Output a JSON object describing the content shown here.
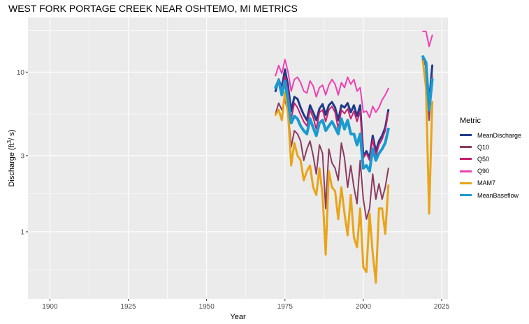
{
  "title": "WEST FORK PORTAGE CREEK NEAR OSHTEMO, MI  METRICS",
  "chart_data": {
    "type": "line",
    "title": "WEST FORK PORTAGE CREEK NEAR OSHTEMO, MI  METRICS",
    "xlabel": "Year",
    "ylabel": "Discharge (ft³/s)",
    "ylabel_parts": {
      "pre": "Discharge (ft",
      "sup": "3",
      "post": "/ s)"
    },
    "x_scale": "linear",
    "y_scale": "log10",
    "xlim": [
      1893,
      2027
    ],
    "ylim": [
      0.38,
      22
    ],
    "x_ticks": [
      1900,
      1925,
      1950,
      1975,
      2000,
      2025
    ],
    "y_ticks": [
      1,
      3,
      10
    ],
    "y_tick_labels": [
      "1",
      "3",
      "10"
    ],
    "grid": true,
    "legend_position": "right",
    "legend_title": "Metric",
    "series": [
      {
        "name": "MeanDischarge",
        "color": "#1f3a8a",
        "width": 3,
        "x": [
          1972,
          1973,
          1974,
          1975,
          1976,
          1977,
          1978,
          1979,
          1980,
          1981,
          1982,
          1983,
          1984,
          1985,
          1986,
          1987,
          1988,
          1989,
          1990,
          1991,
          1992,
          1993,
          1994,
          1995,
          1996,
          1997,
          1998,
          1999,
          2000,
          2001,
          2002,
          2003,
          2004,
          2005,
          2006,
          2007,
          2008,
          null,
          2019,
          2020,
          2021,
          2022
        ],
        "y": [
          7.6,
          9.0,
          8.0,
          10.4,
          8.2,
          5.7,
          7.0,
          6.8,
          6.0,
          5.4,
          5.0,
          6.2,
          5.6,
          5.0,
          5.9,
          6.3,
          5.4,
          6.2,
          6.5,
          6.0,
          5.0,
          6.2,
          6.0,
          6.4,
          5.6,
          6.2,
          5.3,
          6.2,
          3.0,
          3.2,
          2.9,
          4.0,
          3.2,
          3.7,
          4.0,
          4.5,
          5.8,
          null,
          12.0,
          11.0,
          6.5,
          11.0
        ]
      },
      {
        "name": "Q10",
        "color": "#8b3a62",
        "width": 2,
        "x": [
          1972,
          1973,
          1974,
          1975,
          1976,
          1977,
          1978,
          1979,
          1980,
          1981,
          1982,
          1983,
          1984,
          1985,
          1986,
          1987,
          1988,
          1989,
          1990,
          1991,
          1992,
          1993,
          1994,
          1995,
          1996,
          1997,
          1998,
          1999,
          2000,
          2001,
          2002,
          2003,
          2004,
          2005,
          2006,
          2007,
          2008,
          null,
          2019,
          2020,
          2021,
          2022
        ],
        "y": [
          5.5,
          6.4,
          5.8,
          6.7,
          5.6,
          3.4,
          4.3,
          4.1,
          3.7,
          2.8,
          3.3,
          3.7,
          3.0,
          2.3,
          3.5,
          3.1,
          1.4,
          3.3,
          2.7,
          2.5,
          2.1,
          3.6,
          2.9,
          1.9,
          2.6,
          1.9,
          1.5,
          2.8,
          1.6,
          1.2,
          1.4,
          2.3,
          1.6,
          2.0,
          1.6,
          1.9,
          2.5,
          null,
          12.0,
          11.0,
          5.0,
          9.5
        ]
      },
      {
        "name": "Q50",
        "color": "#c71f6d",
        "width": 2,
        "x": [
          1972,
          1973,
          1974,
          1975,
          1976,
          1977,
          1978,
          1979,
          1980,
          1981,
          1982,
          1983,
          1984,
          1985,
          1986,
          1987,
          1988,
          1989,
          1990,
          1991,
          1992,
          1993,
          1994,
          1995,
          1996,
          1997,
          1998,
          1999,
          2000,
          2001,
          2002,
          2003,
          2004,
          2005,
          2006,
          2007,
          2008,
          null,
          2019,
          2020,
          2021,
          2022
        ],
        "y": [
          8.0,
          9.0,
          7.8,
          9.4,
          7.7,
          5.1,
          6.4,
          6.0,
          5.4,
          4.9,
          4.6,
          5.8,
          5.2,
          4.4,
          5.6,
          5.8,
          4.9,
          5.8,
          6.1,
          5.6,
          4.4,
          5.8,
          5.5,
          5.9,
          5.1,
          5.7,
          4.9,
          5.7,
          2.9,
          3.1,
          2.8,
          3.8,
          3.0,
          3.5,
          3.8,
          4.3,
          5.6,
          null,
          12.0,
          11.0,
          7.0,
          8.5
        ]
      },
      {
        "name": "Q90",
        "color": "#f03fb4",
        "width": 2,
        "x": [
          1972,
          1973,
          1974,
          1975,
          1976,
          1977,
          1978,
          1979,
          1980,
          1981,
          1982,
          1983,
          1984,
          1985,
          1986,
          1987,
          1988,
          1989,
          1990,
          1991,
          1992,
          1993,
          1994,
          1995,
          1996,
          1997,
          1998,
          1999,
          2000,
          2001,
          2002,
          2003,
          2004,
          2005,
          2006,
          2007,
          2008,
          null,
          2019,
          2020,
          2021,
          2022
        ],
        "y": [
          9.5,
          11.0,
          9.8,
          12.0,
          10.0,
          7.6,
          9.0,
          9.3,
          8.6,
          7.6,
          7.4,
          8.8,
          8.2,
          7.0,
          8.0,
          8.3,
          7.2,
          8.3,
          9.0,
          8.4,
          7.2,
          8.6,
          8.0,
          9.3,
          8.4,
          9.0,
          7.6,
          8.0,
          5.6,
          5.7,
          5.2,
          6.1,
          5.6,
          6.0,
          6.7,
          7.2,
          7.9,
          null,
          18.0,
          18.0,
          14.5,
          17.0
        ]
      },
      {
        "name": "MAM7",
        "color": "#e8a419",
        "width": 3,
        "x": [
          1972,
          1973,
          1974,
          1975,
          1976,
          1977,
          1978,
          1979,
          1980,
          1981,
          1982,
          1983,
          1984,
          1985,
          1986,
          1987,
          1988,
          1989,
          1990,
          1991,
          1992,
          1993,
          1994,
          1995,
          1996,
          1997,
          1998,
          1999,
          2000,
          2001,
          2002,
          2003,
          2004,
          2005,
          2006,
          2007,
          2008,
          null,
          2019,
          2020,
          2021,
          2022
        ],
        "y": [
          5.4,
          5.8,
          5.0,
          7.5,
          5.5,
          2.6,
          3.6,
          3.0,
          2.8,
          2.1,
          2.4,
          2.6,
          1.9,
          1.7,
          2.5,
          1.7,
          0.72,
          2.4,
          1.9,
          1.8,
          1.2,
          1.9,
          1.3,
          0.95,
          1.7,
          0.92,
          0.8,
          1.4,
          0.6,
          0.56,
          1.3,
          0.73,
          0.48,
          1.4,
          1.4,
          0.97,
          1.95,
          null,
          11.8,
          8.0,
          1.3,
          6.5
        ]
      },
      {
        "name": "MeanBaseflow",
        "color": "#1a9ad0",
        "width": 4,
        "x": [
          1972,
          1973,
          1974,
          1975,
          1976,
          1977,
          1978,
          1979,
          1980,
          1981,
          1982,
          1983,
          1984,
          1985,
          1986,
          1987,
          1988,
          1989,
          1990,
          1991,
          1992,
          1993,
          1994,
          1995,
          1996,
          1997,
          1998,
          1999,
          2000,
          2001,
          2002,
          2003,
          2004,
          2005,
          2006,
          2007,
          2008,
          null,
          2019,
          2020,
          2021,
          2022
        ],
        "y": [
          8.0,
          8.9,
          7.2,
          8.8,
          6.6,
          4.8,
          5.3,
          5.1,
          4.6,
          4.3,
          4.1,
          5.1,
          4.5,
          4.0,
          4.8,
          5.0,
          4.3,
          4.6,
          4.9,
          4.5,
          4.1,
          5.1,
          4.4,
          5.0,
          4.1,
          4.1,
          3.5,
          4.1,
          2.5,
          2.6,
          2.4,
          3.3,
          2.8,
          3.1,
          3.3,
          3.6,
          4.4,
          null,
          12.5,
          11.5,
          5.8,
          9.0
        ]
      }
    ]
  }
}
